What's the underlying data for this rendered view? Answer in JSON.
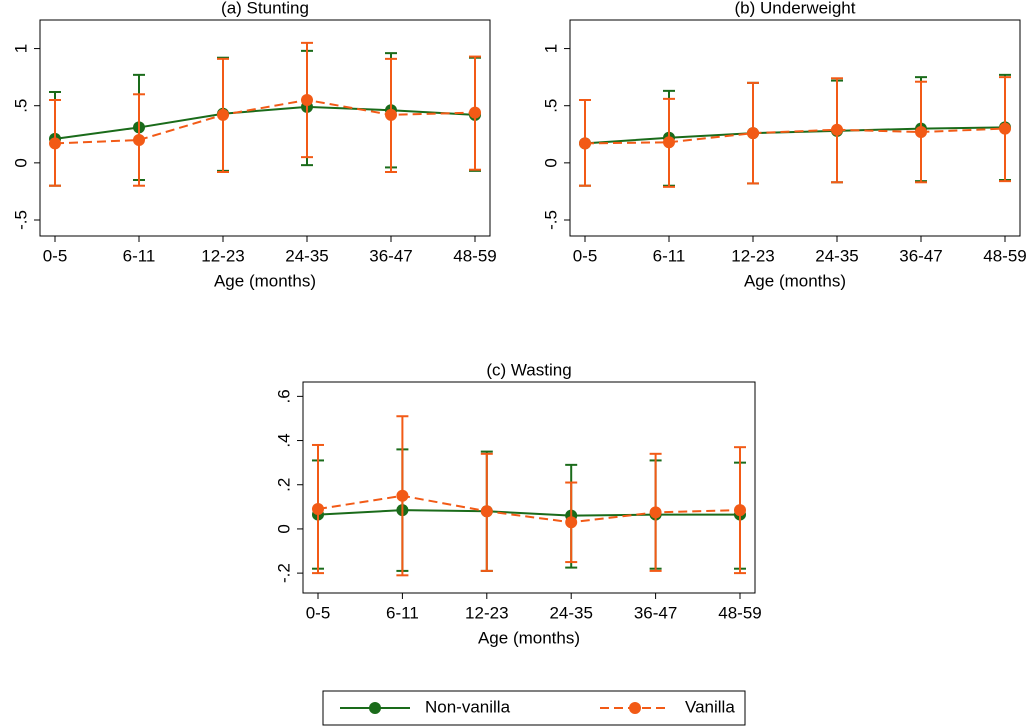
{
  "chart_data": [
    {
      "type": "line",
      "title": "(a) Stunting",
      "xlabel": "Age (months)",
      "categories": [
        "0-5",
        "6-11",
        "12-23",
        "24-35",
        "36-47",
        "48-59"
      ],
      "ylim": [
        -0.64,
        1.25
      ],
      "yticks": [
        {
          "value": -0.5,
          "label": "-.5"
        },
        0,
        {
          "value": 0.5,
          "label": ".5"
        },
        1
      ],
      "series": [
        {
          "name": "Non-vanilla",
          "color": "#1a6b1a",
          "dashed": false,
          "values": [
            0.21,
            0.31,
            0.43,
            0.49,
            0.46,
            0.42
          ],
          "lower": [
            -0.2,
            -0.15,
            -0.07,
            -0.02,
            -0.04,
            -0.07
          ],
          "upper": [
            0.62,
            0.77,
            0.92,
            0.98,
            0.96,
            0.92
          ]
        },
        {
          "name": "Vanilla",
          "color": "#f25a16",
          "dashed": true,
          "values": [
            0.17,
            0.2,
            0.42,
            0.55,
            0.42,
            0.44
          ],
          "lower": [
            -0.2,
            -0.2,
            -0.08,
            0.05,
            -0.08,
            -0.06
          ],
          "upper": [
            0.55,
            0.6,
            0.91,
            1.05,
            0.91,
            0.93
          ]
        }
      ]
    },
    {
      "type": "line",
      "title": "(b) Underweight",
      "xlabel": "Age (months)",
      "categories": [
        "0-5",
        "6-11",
        "12-23",
        "24-35",
        "36-47",
        "48-59"
      ],
      "ylim": [
        -0.64,
        1.25
      ],
      "yticks": [
        {
          "value": -0.5,
          "label": "-.5"
        },
        0,
        {
          "value": 0.5,
          "label": ".5"
        },
        1
      ],
      "series": [
        {
          "color": "#1a6b1a",
          "dashed": false,
          "values": [
            0.17,
            0.22,
            0.26,
            0.28,
            0.3,
            0.31
          ],
          "lower": [
            -0.2,
            -0.2,
            -0.18,
            -0.17,
            -0.16,
            -0.15
          ],
          "upper": [
            0.55,
            0.63,
            0.7,
            0.72,
            0.75,
            0.77
          ]
        },
        {
          "color": "#f25a16",
          "dashed": true,
          "values": [
            0.17,
            0.18,
            0.26,
            0.29,
            0.27,
            0.3
          ],
          "lower": [
            -0.2,
            -0.21,
            -0.18,
            -0.17,
            -0.17,
            -0.16
          ],
          "upper": [
            0.55,
            0.56,
            0.7,
            0.74,
            0.71,
            0.75
          ]
        }
      ]
    },
    {
      "type": "line",
      "title": "(c) Wasting",
      "xlabel": "Age (months)",
      "categories": [
        "0-5",
        "6-11",
        "12-23",
        "24-35",
        "36-47",
        "48-59"
      ],
      "ylim": [
        -0.29,
        0.665
      ],
      "yticks": [
        {
          "value": -0.2,
          "label": "-.2"
        },
        0,
        {
          "value": 0.2,
          "label": ".2"
        },
        {
          "value": 0.4,
          "label": ".4"
        },
        {
          "value": 0.6,
          "label": ".6"
        }
      ],
      "series": [
        {
          "color": "#1a6b1a",
          "dashed": false,
          "values": [
            0.065,
            0.085,
            0.08,
            0.06,
            0.065,
            0.065
          ],
          "lower": [
            -0.18,
            -0.19,
            -0.19,
            -0.175,
            -0.18,
            -0.18
          ],
          "upper": [
            0.31,
            0.36,
            0.35,
            0.29,
            0.31,
            0.3
          ]
        },
        {
          "color": "#f25a16",
          "dashed": true,
          "values": [
            0.09,
            0.15,
            0.08,
            0.03,
            0.075,
            0.085
          ],
          "lower": [
            -0.2,
            -0.21,
            -0.19,
            -0.15,
            -0.19,
            -0.2
          ],
          "upper": [
            0.38,
            0.51,
            0.34,
            0.21,
            0.34,
            0.37
          ]
        }
      ]
    }
  ]
}
